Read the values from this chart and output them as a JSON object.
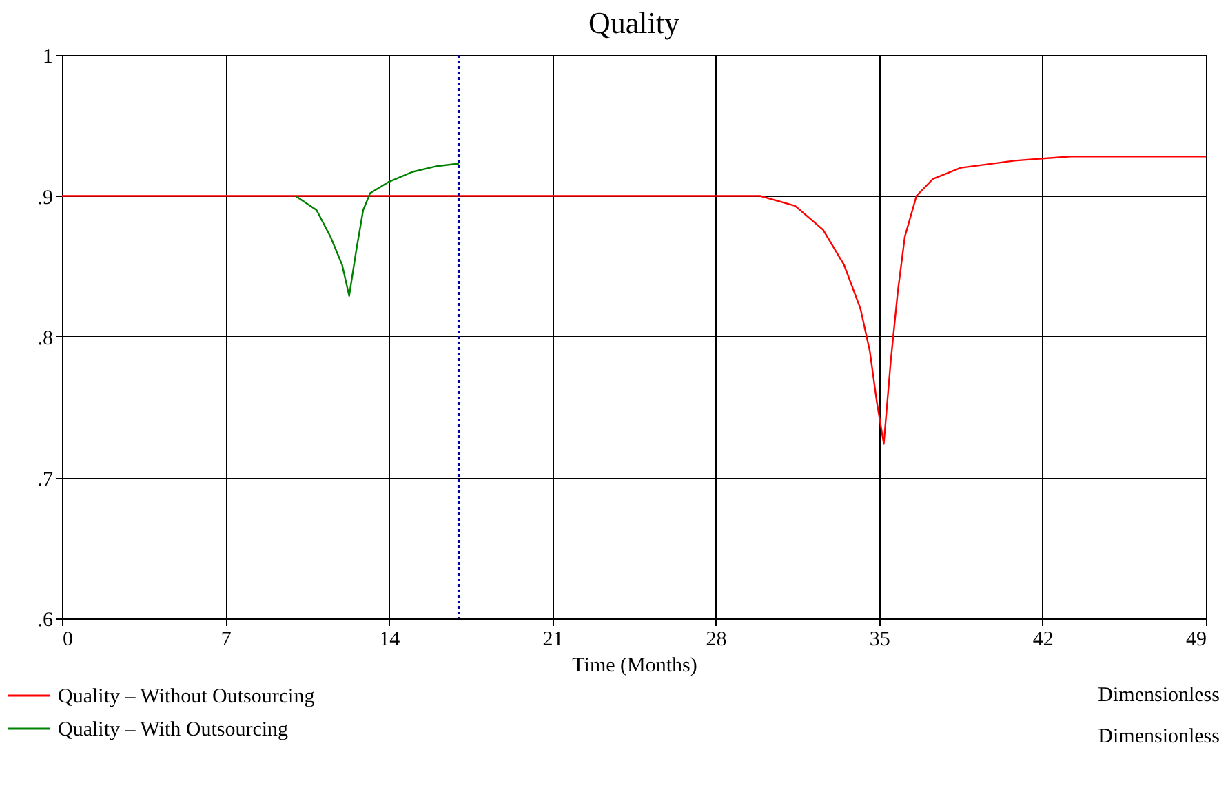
{
  "chart_data": {
    "type": "line",
    "title": "Quality",
    "xlabel": "Time (Months)",
    "xlim": [
      0,
      49
    ],
    "xticks": [
      0,
      7,
      14,
      21,
      28,
      35,
      42,
      49
    ],
    "ylim": [
      0.6,
      1
    ],
    "yticks": [
      {
        "value": 0.6,
        "label": ".6"
      },
      {
        "value": 0.7,
        "label": ".7"
      },
      {
        "value": 0.8,
        "label": ".8"
      },
      {
        "value": 0.9,
        "label": ".9"
      },
      {
        "value": 1,
        "label": "1"
      }
    ],
    "grid": true,
    "legend": "bottom",
    "line_style": "solid",
    "series": [
      {
        "name": "Quality – Without  Outsourcing",
        "color": "#ff0000",
        "x": [
          0,
          29.9,
          31.4,
          32.6,
          33.5,
          34.2,
          34.6,
          34.9,
          35.2,
          35.5,
          35.8,
          36.1,
          36.6,
          37.3,
          38.5,
          40.8,
          43.2,
          49
        ],
        "values": [
          0.9,
          0.9,
          0.893,
          0.876,
          0.851,
          0.82,
          0.79,
          0.754,
          0.724,
          0.783,
          0.832,
          0.871,
          0.9,
          0.912,
          0.92,
          0.925,
          0.928,
          0.928
        ]
      },
      {
        "name": "Quality – With Outsourcing",
        "color": "#008000",
        "x": [
          10,
          10.9,
          11.5,
          12.0,
          12.3,
          12.6,
          12.9,
          13.2,
          14,
          15,
          16,
          17
        ],
        "values": [
          0.9,
          0.89,
          0.871,
          0.851,
          0.829,
          0.861,
          0.89,
          0.902,
          0.91,
          0.917,
          0.921,
          0.923
        ]
      }
    ],
    "ref_lines": [
      {
        "axis": "x",
        "value": 17,
        "color": "#0000aa",
        "line_style": "dotted"
      }
    ],
    "annotations": [
      "Dimensionless",
      "Dimensionless"
    ]
  }
}
